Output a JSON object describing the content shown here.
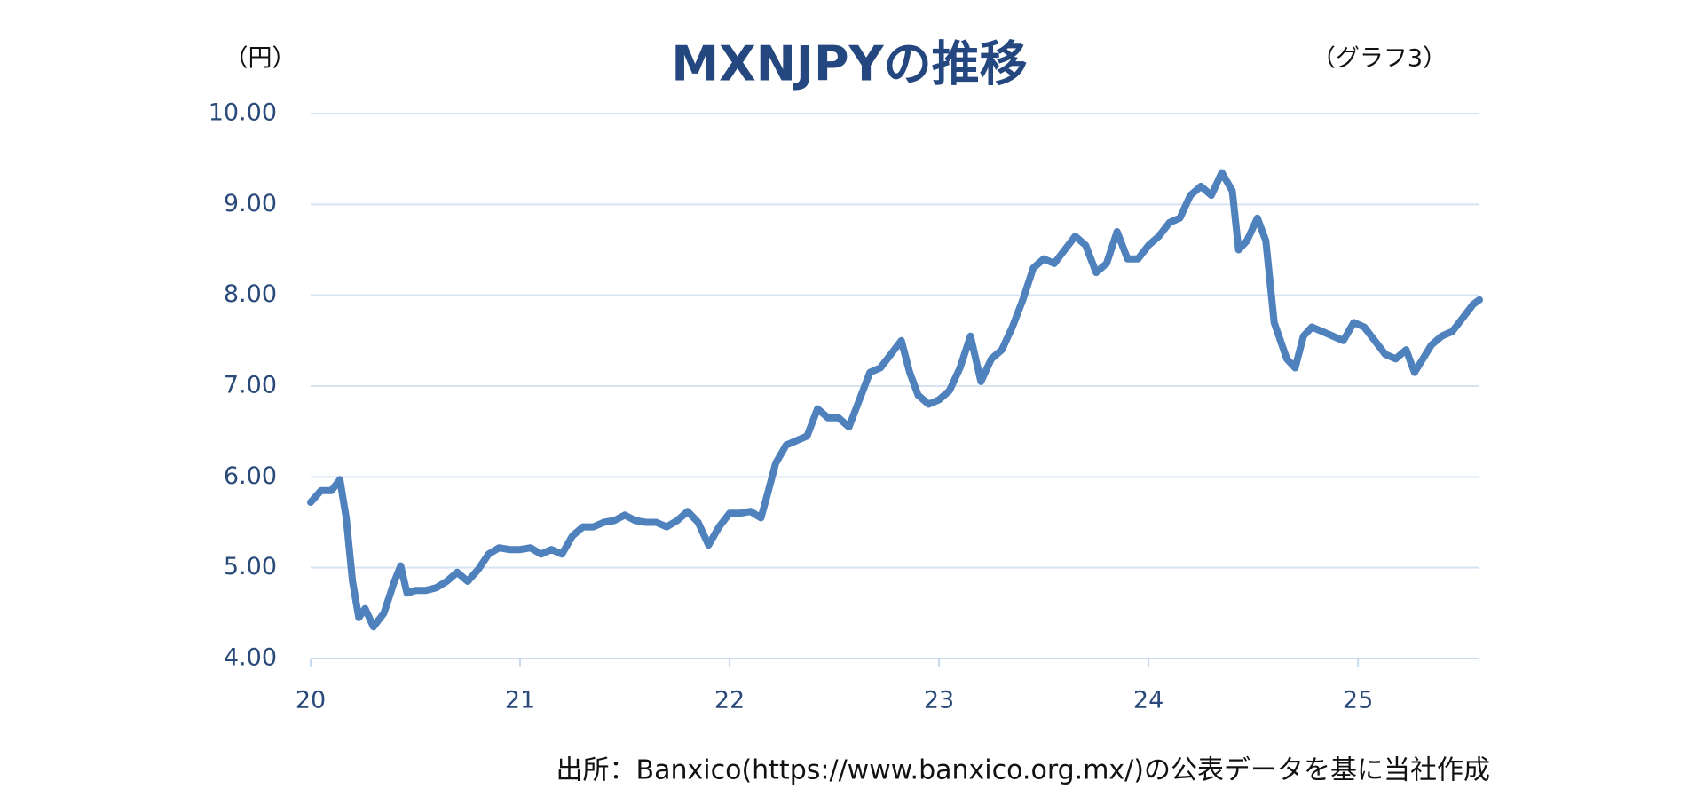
{
  "chart_data": {
    "type": "line",
    "title": "MXNJPYの推移",
    "y_unit_label": "（円）",
    "note": "（グラフ3）",
    "source": "出所：Banxico(https://www.banxico.org.mx/)の公表データを基に当社作成",
    "color": "#4f81bd",
    "grid": true,
    "xlim": [
      20,
      25.58
    ],
    "xticks": [
      20,
      21,
      22,
      23,
      24,
      25
    ],
    "ylim": [
      4,
      10
    ],
    "yticks": [
      {
        "value": 4,
        "label": "4.00"
      },
      {
        "value": 5,
        "label": "5.00"
      },
      {
        "value": 6,
        "label": "6.00"
      },
      {
        "value": 7,
        "label": "7.00"
      },
      {
        "value": 8,
        "label": "8.00"
      },
      {
        "value": 9,
        "label": "9.00"
      },
      {
        "value": 10,
        "label": "10.00"
      }
    ],
    "x": [
      20.0,
      20.05,
      20.1,
      20.14,
      20.17,
      20.2,
      20.23,
      20.26,
      20.3,
      20.35,
      20.4,
      20.43,
      20.46,
      20.5,
      20.55,
      20.6,
      20.65,
      20.7,
      20.75,
      20.8,
      20.85,
      20.9,
      20.95,
      21.0,
      21.05,
      21.1,
      21.15,
      21.2,
      21.25,
      21.3,
      21.35,
      21.4,
      21.45,
      21.5,
      21.55,
      21.6,
      21.65,
      21.7,
      21.75,
      21.8,
      21.85,
      21.9,
      21.95,
      22.0,
      22.05,
      22.1,
      22.15,
      22.18,
      22.22,
      22.27,
      22.32,
      22.37,
      22.42,
      22.47,
      22.52,
      22.57,
      22.62,
      22.67,
      22.72,
      22.77,
      22.82,
      22.86,
      22.9,
      22.95,
      23.0,
      23.05,
      23.1,
      23.15,
      23.2,
      23.25,
      23.3,
      23.35,
      23.4,
      23.45,
      23.5,
      23.55,
      23.6,
      23.65,
      23.7,
      23.75,
      23.8,
      23.85,
      23.9,
      23.95,
      24.0,
      24.05,
      24.1,
      24.15,
      24.2,
      24.25,
      24.3,
      24.35,
      24.4,
      24.43,
      24.47,
      24.52,
      24.56,
      24.6,
      24.63,
      24.66,
      24.7,
      24.74,
      24.78,
      24.83,
      24.88,
      24.93,
      24.98,
      25.03,
      25.08,
      25.13,
      25.18,
      25.23,
      25.27,
      25.31,
      25.35,
      25.4,
      25.45,
      25.5,
      25.55,
      25.58
    ],
    "values": [
      5.72,
      5.85,
      5.85,
      5.97,
      5.55,
      4.85,
      4.45,
      4.55,
      4.35,
      4.5,
      4.85,
      5.02,
      4.72,
      4.75,
      4.75,
      4.78,
      4.85,
      4.95,
      4.85,
      4.98,
      5.15,
      5.22,
      5.2,
      5.2,
      5.22,
      5.15,
      5.2,
      5.15,
      5.35,
      5.45,
      5.45,
      5.5,
      5.52,
      5.58,
      5.52,
      5.5,
      5.5,
      5.45,
      5.52,
      5.62,
      5.5,
      5.25,
      5.45,
      5.6,
      5.6,
      5.62,
      5.55,
      5.8,
      6.15,
      6.35,
      6.4,
      6.45,
      6.75,
      6.65,
      6.65,
      6.55,
      6.85,
      7.15,
      7.2,
      7.35,
      7.5,
      7.15,
      6.9,
      6.8,
      6.85,
      6.95,
      7.2,
      7.55,
      7.05,
      7.3,
      7.4,
      7.65,
      7.95,
      8.3,
      8.4,
      8.35,
      8.5,
      8.65,
      8.55,
      8.25,
      8.35,
      8.7,
      8.4,
      8.4,
      8.55,
      8.65,
      8.8,
      8.85,
      9.1,
      9.2,
      9.1,
      9.35,
      9.15,
      8.5,
      8.6,
      8.85,
      8.6,
      7.7,
      7.5,
      7.3,
      7.2,
      7.55,
      7.65,
      7.6,
      7.55,
      7.5,
      7.7,
      7.65,
      7.5,
      7.35,
      7.3,
      7.4,
      7.15,
      7.3,
      7.45,
      7.55,
      7.6,
      7.75,
      7.9,
      7.95
    ]
  }
}
